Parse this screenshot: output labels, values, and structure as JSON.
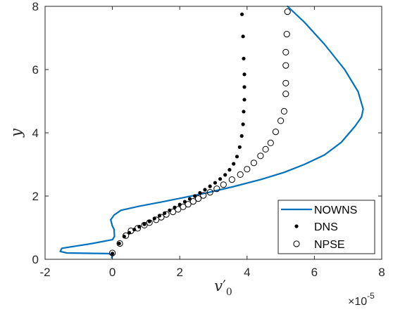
{
  "chart_data": {
    "type": "line",
    "xlim": [
      -2,
      8
    ],
    "ylim": [
      0,
      8
    ],
    "xticks": [
      -2,
      0,
      2,
      4,
      6,
      8
    ],
    "yticks": [
      0,
      2,
      4,
      6,
      8
    ],
    "x_multiplier": "×10",
    "x_multiplier_exponent": "-5",
    "xlabel": "v",
    "xlabel_prime": "′",
    "xlabel_sub": "0",
    "ylabel": "y",
    "legend_position": "bottom-right",
    "axis_color": "#262626",
    "series": [
      {
        "name": "NOWNS",
        "style": "line",
        "color": "#0072BD",
        "x": [
          -0.02,
          0.0,
          -0.1,
          -1.35,
          -1.55,
          -1.5,
          -0.6,
          0.0,
          0.06,
          0.05,
          0.0,
          -0.05,
          0.05,
          0.25,
          0.8,
          1.5,
          2.1,
          2.8,
          3.6,
          4.4,
          5.1,
          5.7,
          6.3,
          6.8,
          7.2,
          7.4,
          7.45,
          7.3,
          6.9,
          6.3,
          5.7,
          5.2
        ],
        "y": [
          0.05,
          0.12,
          0.18,
          0.2,
          0.25,
          0.35,
          0.5,
          0.62,
          0.72,
          0.95,
          1.05,
          1.25,
          1.4,
          1.55,
          1.68,
          1.82,
          1.95,
          2.1,
          2.3,
          2.52,
          2.75,
          3.0,
          3.3,
          3.7,
          4.2,
          4.5,
          4.75,
          5.3,
          6.0,
          6.8,
          7.5,
          8.0
        ]
      },
      {
        "name": "DNS",
        "style": "dot",
        "color": "#000000",
        "x": [
          0.0,
          0.2,
          0.35,
          0.5,
          0.65,
          0.8,
          0.95,
          1.1,
          1.25,
          1.4,
          1.55,
          1.7,
          1.85,
          2.0,
          2.15,
          2.3,
          2.45,
          2.6,
          2.75,
          2.9,
          3.05,
          3.2,
          3.35,
          3.48,
          3.6,
          3.7,
          3.78,
          3.84,
          3.88,
          3.9,
          3.92,
          3.92,
          3.92,
          3.9,
          3.88,
          3.85
        ],
        "y": [
          0.18,
          0.5,
          0.72,
          0.84,
          0.94,
          1.03,
          1.11,
          1.2,
          1.29,
          1.38,
          1.46,
          1.55,
          1.64,
          1.73,
          1.82,
          1.91,
          2.0,
          2.1,
          2.2,
          2.31,
          2.42,
          2.54,
          2.67,
          2.83,
          3.02,
          3.25,
          3.55,
          3.9,
          4.27,
          4.67,
          5.05,
          5.45,
          5.85,
          6.35,
          7.05,
          7.75
        ]
      },
      {
        "name": "NPSE",
        "style": "circle",
        "color": "#000000",
        "x": [
          0.0,
          0.22,
          0.4,
          0.55,
          0.75,
          0.95,
          1.1,
          1.3,
          1.45,
          1.6,
          1.8,
          1.95,
          2.1,
          2.25,
          2.4,
          2.55,
          2.7,
          2.9,
          3.1,
          3.3,
          3.55,
          3.8,
          4.0,
          4.2,
          4.4,
          4.55,
          4.7,
          4.85,
          5.0,
          5.1,
          5.15,
          5.15,
          5.15,
          5.15,
          5.18,
          5.2
        ],
        "y": [
          0.2,
          0.5,
          0.75,
          0.9,
          0.98,
          1.08,
          1.16,
          1.25,
          1.33,
          1.42,
          1.5,
          1.58,
          1.66,
          1.74,
          1.83,
          1.92,
          2.02,
          2.12,
          2.23,
          2.36,
          2.52,
          2.68,
          2.85,
          3.05,
          3.27,
          3.48,
          3.68,
          4.03,
          4.38,
          4.68,
          5.23,
          5.57,
          6.13,
          6.55,
          7.12,
          7.83
        ]
      }
    ]
  }
}
